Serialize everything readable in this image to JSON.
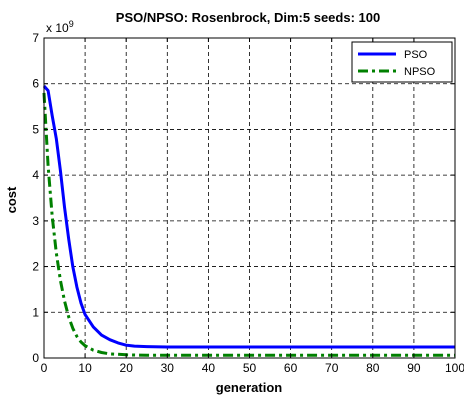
{
  "chart_data": {
    "type": "line",
    "title": "PSO/NPSO: Rosenbrock, Dim:5 seeds: 100",
    "xlabel": "generation",
    "ylabel": "cost",
    "y_exponent_label": "x 10",
    "y_exponent_power": "9",
    "xlim": [
      0,
      100
    ],
    "ylim": [
      0,
      7
    ],
    "x_ticks": [
      0,
      10,
      20,
      30,
      40,
      50,
      60,
      70,
      80,
      90,
      100
    ],
    "y_ticks": [
      0,
      1,
      2,
      3,
      4,
      5,
      6,
      7
    ],
    "grid": true,
    "legend_position": "top-right",
    "series": [
      {
        "name": "PSO",
        "color": "#0000ff",
        "line_style": "solid",
        "x": [
          0,
          1,
          2,
          3,
          4,
          5,
          6,
          7,
          8,
          9,
          10,
          12,
          14,
          16,
          18,
          20,
          22,
          25,
          30,
          40,
          50,
          60,
          70,
          80,
          90,
          100
        ],
        "values": [
          5.95,
          5.85,
          5.3,
          4.8,
          4.1,
          3.3,
          2.6,
          2.0,
          1.55,
          1.2,
          0.95,
          0.68,
          0.5,
          0.4,
          0.33,
          0.28,
          0.26,
          0.25,
          0.24,
          0.24,
          0.24,
          0.24,
          0.24,
          0.24,
          0.24,
          0.24
        ]
      },
      {
        "name": "NPSO",
        "color": "#008000",
        "line_style": "dash-dot",
        "x": [
          0,
          1,
          2,
          3,
          4,
          5,
          6,
          7,
          8,
          9,
          10,
          12,
          14,
          16,
          18,
          20,
          25,
          30,
          40,
          50,
          60,
          70,
          80,
          90,
          100
        ],
        "values": [
          5.8,
          4.2,
          3.1,
          2.3,
          1.7,
          1.25,
          0.9,
          0.65,
          0.47,
          0.35,
          0.27,
          0.17,
          0.12,
          0.09,
          0.08,
          0.07,
          0.06,
          0.06,
          0.06,
          0.06,
          0.06,
          0.06,
          0.06,
          0.06,
          0.06
        ]
      }
    ]
  }
}
